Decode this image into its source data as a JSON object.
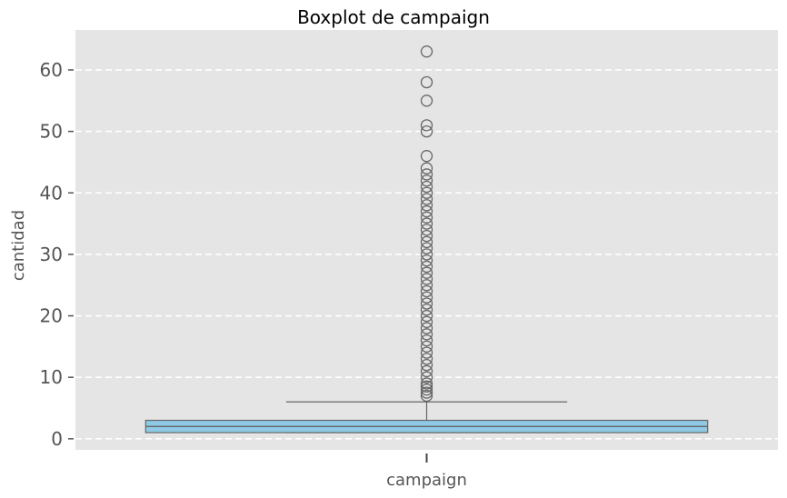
{
  "chart_data": {
    "type": "boxplot",
    "title": "Boxplot de campaign",
    "xlabel": "",
    "ylabel": "cantidad",
    "categories": [
      "campaign"
    ],
    "y_ticks": [
      0,
      10,
      20,
      30,
      40,
      50,
      60
    ],
    "ylim": [
      -1.8,
      66.5
    ],
    "grid": true,
    "grid_style": "dashed",
    "colors": {
      "background": "#e5e5e5",
      "grid": "#ffffff",
      "box_fill": "#8ecae6",
      "box_stroke": "#666666",
      "tick_text": "#555555"
    },
    "boxes": [
      {
        "category": "campaign",
        "whisker_low": 1,
        "q1": 1,
        "median": 2,
        "q3": 3,
        "whisker_high": 6,
        "outliers": [
          7,
          7.5,
          8,
          8.5,
          9,
          10,
          11,
          12,
          13,
          14,
          15,
          16,
          17,
          18,
          19,
          20,
          21,
          22,
          23,
          24,
          25,
          26,
          27,
          28,
          29,
          30,
          31,
          32,
          33,
          34,
          35,
          36,
          37,
          38,
          39,
          40,
          41,
          42,
          43,
          44,
          46,
          50,
          51,
          55,
          58,
          63
        ]
      }
    ]
  }
}
